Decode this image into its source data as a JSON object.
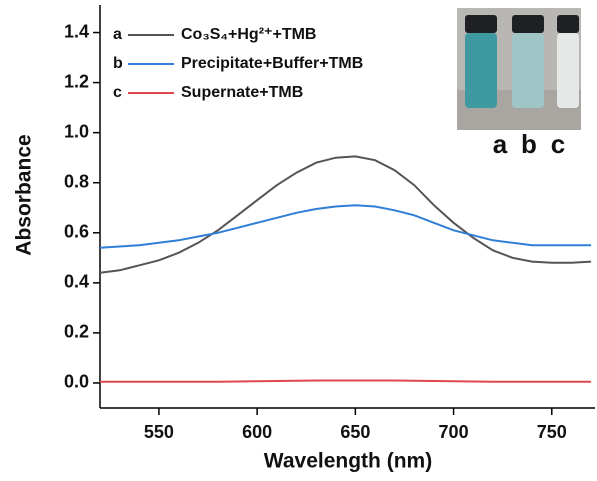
{
  "chart_data": {
    "type": "line",
    "xlabel": "Wavelength (nm)",
    "ylabel": "Absorbance",
    "x": [
      520,
      530,
      540,
      550,
      560,
      570,
      580,
      590,
      600,
      610,
      620,
      630,
      640,
      650,
      660,
      670,
      680,
      690,
      700,
      710,
      720,
      730,
      740,
      750,
      760,
      770
    ],
    "series": [
      {
        "name": "Co₃S₄+Hg²⁺+TMB",
        "label": "a",
        "color": "#555555",
        "values": [
          0.44,
          0.45,
          0.47,
          0.49,
          0.52,
          0.56,
          0.61,
          0.67,
          0.73,
          0.79,
          0.84,
          0.88,
          0.9,
          0.905,
          0.89,
          0.85,
          0.79,
          0.71,
          0.64,
          0.58,
          0.53,
          0.5,
          0.485,
          0.48,
          0.48,
          0.485
        ]
      },
      {
        "name": "Precipitate+Buffer+TMB",
        "label": "b",
        "color": "#2f7fd6",
        "values": [
          0.54,
          0.545,
          0.55,
          0.56,
          0.57,
          0.585,
          0.6,
          0.62,
          0.64,
          0.66,
          0.68,
          0.695,
          0.705,
          0.71,
          0.705,
          0.69,
          0.67,
          0.64,
          0.61,
          0.59,
          0.57,
          0.56,
          0.55,
          0.55,
          0.55,
          0.55
        ]
      },
      {
        "name": "Supernate+TMB",
        "label": "c",
        "color": "#e0474c",
        "values": [
          0.005,
          0.005,
          0.005,
          0.005,
          0.005,
          0.005,
          0.005,
          0.006,
          0.007,
          0.008,
          0.009,
          0.01,
          0.01,
          0.01,
          0.01,
          0.01,
          0.009,
          0.008,
          0.007,
          0.006,
          0.005,
          0.005,
          0.005,
          0.005,
          0.005,
          0.005
        ]
      }
    ],
    "xlim": [
      520,
      772
    ],
    "ylim": [
      -0.1,
      1.51
    ],
    "xticks": [
      550,
      600,
      650,
      700,
      750
    ],
    "yticks": [
      {
        "value": 0,
        "label": "0.0"
      },
      0.2,
      0.4,
      0.6,
      0.8,
      {
        "value": 1,
        "label": "1.0"
      },
      1.2,
      1.4
    ],
    "inset_labels": [
      "a",
      "b",
      "c"
    ]
  }
}
